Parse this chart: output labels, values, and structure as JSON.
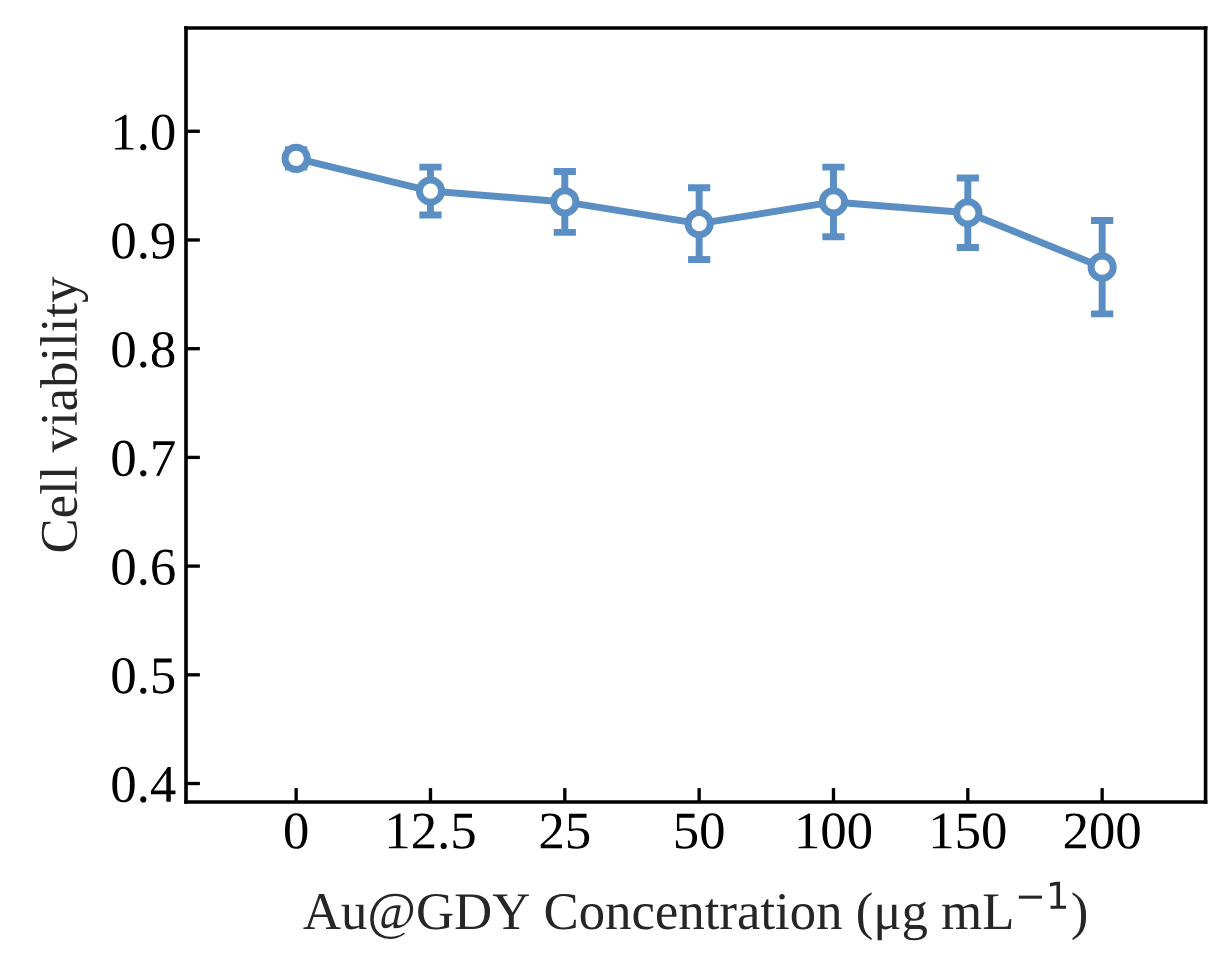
{
  "chart_data": {
    "type": "line",
    "xlabel": "Au@GDY Concentration (μg mL$^{−1}$)",
    "ylabel": "Cell viability",
    "categories": [
      "0",
      "12.5",
      "25",
      "50",
      "100",
      "150",
      "200"
    ],
    "series": [
      {
        "color": "#5b8fc3",
        "values": [
          0.975,
          0.945,
          0.935,
          0.915,
          0.935,
          0.925,
          0.875
        ],
        "errors": [
          0.008,
          0.022,
          0.028,
          0.033,
          0.032,
          0.032,
          0.043
        ]
      }
    ],
    "ylim": [
      0.383,
      1.095
    ],
    "yticks": [
      0.4,
      0.5,
      0.6,
      0.7,
      0.8,
      0.9,
      {
        "value": 1,
        "label": "1.0"
      }
    ],
    "grid": false,
    "marker": "circle",
    "line_style": "solid",
    "legend": false
  }
}
